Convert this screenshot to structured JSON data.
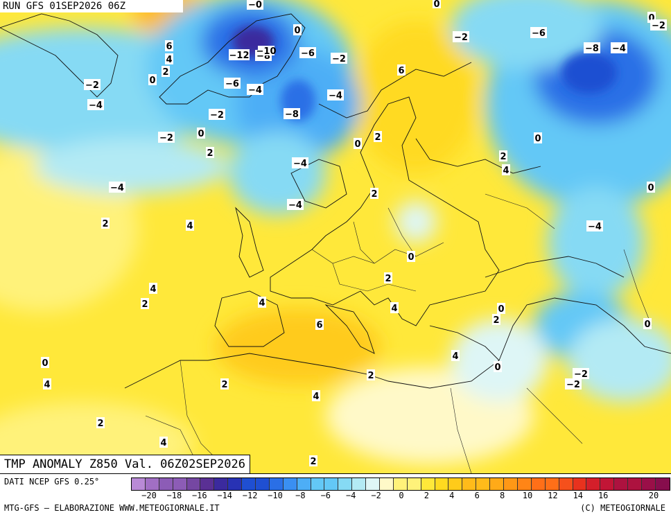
{
  "header": {
    "run_label": "RUN GFS 01SEP2026 06Z"
  },
  "title": {
    "text": "TMP ANOMALY Z850 Val. 06Z02SEP2026"
  },
  "footer": {
    "source": "DATI NCEP GFS 0.25°",
    "elaboration": "MTG-GFS — ELABORAZIONE WWW.METEOGIORNALE.IT",
    "copyright": "(C) METEOGIORNALE"
  },
  "legend": {
    "colors": [
      "#b98ad6",
      "#a16fc4",
      "#8c5cb6",
      "#7547a2",
      "#5a3094",
      "#3b2a9e",
      "#2832b4",
      "#1f4fd2",
      "#2a6fe6",
      "#3a8ff2",
      "#4daef6",
      "#63c8f6",
      "#86daf4",
      "#b3eaf4",
      "#def6f6",
      "#fff9c8",
      "#fff27a",
      "#ffe83a",
      "#ffda20",
      "#ffcb1a",
      "#ffbb1a",
      "#ffaa18",
      "#ff9816",
      "#ff8516",
      "#ff6f18",
      "#f5501c",
      "#e8321e",
      "#d41f2a",
      "#c21536",
      "#ad123f",
      "#9a0f48",
      "#870d4d"
    ],
    "ticks": [
      "-20",
      "-18",
      "-16",
      "-14",
      "-12",
      "-10",
      "-8",
      "-6",
      "-4",
      "-2",
      "0",
      "2",
      "4",
      "6",
      "8",
      "10",
      "12",
      "14",
      "16",
      "18",
      "20"
    ],
    "tick_labels_shown": [
      "−20",
      "−18",
      "−16",
      "−14",
      "−12",
      "−10",
      "−8",
      "−6",
      "−4",
      "−2",
      "0",
      "2",
      "4",
      "6",
      "8",
      "10",
      "12",
      "14",
      "16",
      "20"
    ]
  },
  "map_labels": [
    {
      "text": "6",
      "id": "l1"
    },
    {
      "text": "4",
      "id": "l2"
    },
    {
      "text": "2",
      "id": "l3"
    },
    {
      "text": "0",
      "id": "l4"
    },
    {
      "text": "−2",
      "id": "l5"
    },
    {
      "text": "−4",
      "id": "l6"
    },
    {
      "text": "−12",
      "id": "l7"
    },
    {
      "text": "−8",
      "id": "l8"
    },
    {
      "text": "−6",
      "id": "l9"
    },
    {
      "text": "−6",
      "id": "l10"
    },
    {
      "text": "−4",
      "id": "l11"
    },
    {
      "text": "−2",
      "id": "l12"
    },
    {
      "text": "0",
      "id": "l13"
    },
    {
      "text": "−2",
      "id": "l14"
    },
    {
      "text": "2",
      "id": "l15"
    },
    {
      "text": "−8",
      "id": "l16"
    },
    {
      "text": "−4",
      "id": "l17"
    },
    {
      "text": "−2",
      "id": "l18"
    },
    {
      "text": "6",
      "id": "l19"
    },
    {
      "text": "−2",
      "id": "l20"
    },
    {
      "text": "−6",
      "id": "l21"
    },
    {
      "text": "−8",
      "id": "l22"
    },
    {
      "text": "−4",
      "id": "l23"
    },
    {
      "text": "0",
      "id": "l24"
    },
    {
      "text": "−2",
      "id": "l25"
    },
    {
      "text": "0",
      "id": "l26"
    },
    {
      "text": "2",
      "id": "l27"
    },
    {
      "text": "2",
      "id": "l28"
    },
    {
      "text": "4",
      "id": "l29"
    },
    {
      "text": "−4",
      "id": "l30"
    },
    {
      "text": "0",
      "id": "l31"
    },
    {
      "text": "2",
      "id": "l32"
    },
    {
      "text": "4",
      "id": "l33"
    },
    {
      "text": "−4",
      "id": "l34"
    },
    {
      "text": "−4",
      "id": "l35"
    },
    {
      "text": "2",
      "id": "l36"
    },
    {
      "text": "0",
      "id": "l37"
    },
    {
      "text": "4",
      "id": "l38"
    },
    {
      "text": "2",
      "id": "l39"
    },
    {
      "text": "4",
      "id": "l40"
    },
    {
      "text": "6",
      "id": "l41"
    },
    {
      "text": "2",
      "id": "l42"
    },
    {
      "text": "4",
      "id": "l43"
    },
    {
      "text": "0",
      "id": "l44"
    },
    {
      "text": "2",
      "id": "l45"
    },
    {
      "text": "0",
      "id": "l46"
    },
    {
      "text": "0",
      "id": "l47"
    },
    {
      "text": "4",
      "id": "l48"
    },
    {
      "text": "4",
      "id": "l49"
    },
    {
      "text": "2",
      "id": "l50"
    },
    {
      "text": "2",
      "id": "l51"
    },
    {
      "text": "4",
      "id": "l52"
    },
    {
      "text": "0",
      "id": "l53"
    },
    {
      "text": "−2",
      "id": "l54"
    },
    {
      "text": "−2",
      "id": "l55"
    },
    {
      "text": "0",
      "id": "l56"
    },
    {
      "text": "2",
      "id": "l57"
    },
    {
      "text": "4",
      "id": "l58"
    },
    {
      "text": "2",
      "id": "l59"
    },
    {
      "text": "2",
      "id": "l60"
    },
    {
      "text": "−0",
      "id": "l61"
    },
    {
      "text": "−10",
      "id": "l62"
    },
    {
      "text": "0",
      "id": "l63"
    },
    {
      "text": "−2",
      "id": "l64"
    },
    {
      "text": "−4",
      "id": "l65"
    },
    {
      "text": "−6",
      "id": "l66"
    },
    {
      "text": "4",
      "id": "l67"
    },
    {
      "text": "2",
      "id": "l68"
    }
  ]
}
